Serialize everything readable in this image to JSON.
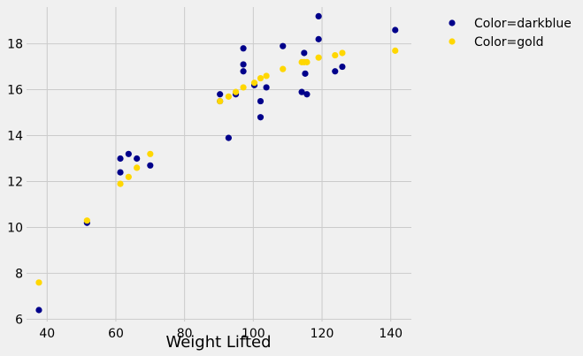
{
  "chart_data": {
    "type": "scatter",
    "title": "",
    "xlabel": "Weight Lifted",
    "ylabel": "",
    "xlim": [
      34,
      146
    ],
    "ylim": [
      5.9,
      19.6
    ],
    "xticks": [
      40,
      60,
      80,
      100,
      120,
      140
    ],
    "yticks": [
      6,
      8,
      10,
      12,
      14,
      16,
      18
    ],
    "grid": true,
    "legend": "outside-top-right",
    "series": [
      {
        "name": "Color=darkblue",
        "color": "#00008b",
        "points": [
          {
            "x": 37.6,
            "y": 6.4
          },
          {
            "x": 51.6,
            "y": 10.2
          },
          {
            "x": 61.3,
            "y": 12.4
          },
          {
            "x": 61.3,
            "y": 13.0
          },
          {
            "x": 63.7,
            "y": 13.2
          },
          {
            "x": 66.1,
            "y": 13.0
          },
          {
            "x": 70.0,
            "y": 12.7
          },
          {
            "x": 90.3,
            "y": 15.5
          },
          {
            "x": 90.3,
            "y": 15.8
          },
          {
            "x": 92.8,
            "y": 13.9
          },
          {
            "x": 94.9,
            "y": 15.8
          },
          {
            "x": 97.1,
            "y": 16.8
          },
          {
            "x": 97.1,
            "y": 17.1
          },
          {
            "x": 97.1,
            "y": 17.8
          },
          {
            "x": 100.3,
            "y": 16.2
          },
          {
            "x": 102.1,
            "y": 15.5
          },
          {
            "x": 102.1,
            "y": 14.8
          },
          {
            "x": 103.8,
            "y": 16.1
          },
          {
            "x": 108.6,
            "y": 17.9
          },
          {
            "x": 114.1,
            "y": 15.9
          },
          {
            "x": 114.8,
            "y": 17.6
          },
          {
            "x": 115.1,
            "y": 16.7
          },
          {
            "x": 115.6,
            "y": 15.8
          },
          {
            "x": 119.0,
            "y": 18.2
          },
          {
            "x": 119.0,
            "y": 19.2
          },
          {
            "x": 123.8,
            "y": 16.8
          },
          {
            "x": 125.9,
            "y": 17.0
          },
          {
            "x": 141.3,
            "y": 18.6
          }
        ]
      },
      {
        "name": "Color=gold",
        "color": "#ffd700",
        "points": [
          {
            "x": 37.6,
            "y": 7.6
          },
          {
            "x": 51.6,
            "y": 10.3
          },
          {
            "x": 61.3,
            "y": 11.9
          },
          {
            "x": 63.7,
            "y": 12.2
          },
          {
            "x": 66.1,
            "y": 12.6
          },
          {
            "x": 70.0,
            "y": 13.2
          },
          {
            "x": 90.3,
            "y": 15.5
          },
          {
            "x": 92.8,
            "y": 15.7
          },
          {
            "x": 94.9,
            "y": 15.9
          },
          {
            "x": 97.1,
            "y": 16.1
          },
          {
            "x": 100.3,
            "y": 16.3
          },
          {
            "x": 102.1,
            "y": 16.5
          },
          {
            "x": 103.8,
            "y": 16.6
          },
          {
            "x": 108.6,
            "y": 16.9
          },
          {
            "x": 114.1,
            "y": 17.2
          },
          {
            "x": 114.8,
            "y": 17.2
          },
          {
            "x": 115.6,
            "y": 17.2
          },
          {
            "x": 119.0,
            "y": 17.4
          },
          {
            "x": 123.8,
            "y": 17.5
          },
          {
            "x": 125.9,
            "y": 17.6
          },
          {
            "x": 141.3,
            "y": 17.7
          }
        ]
      }
    ]
  }
}
